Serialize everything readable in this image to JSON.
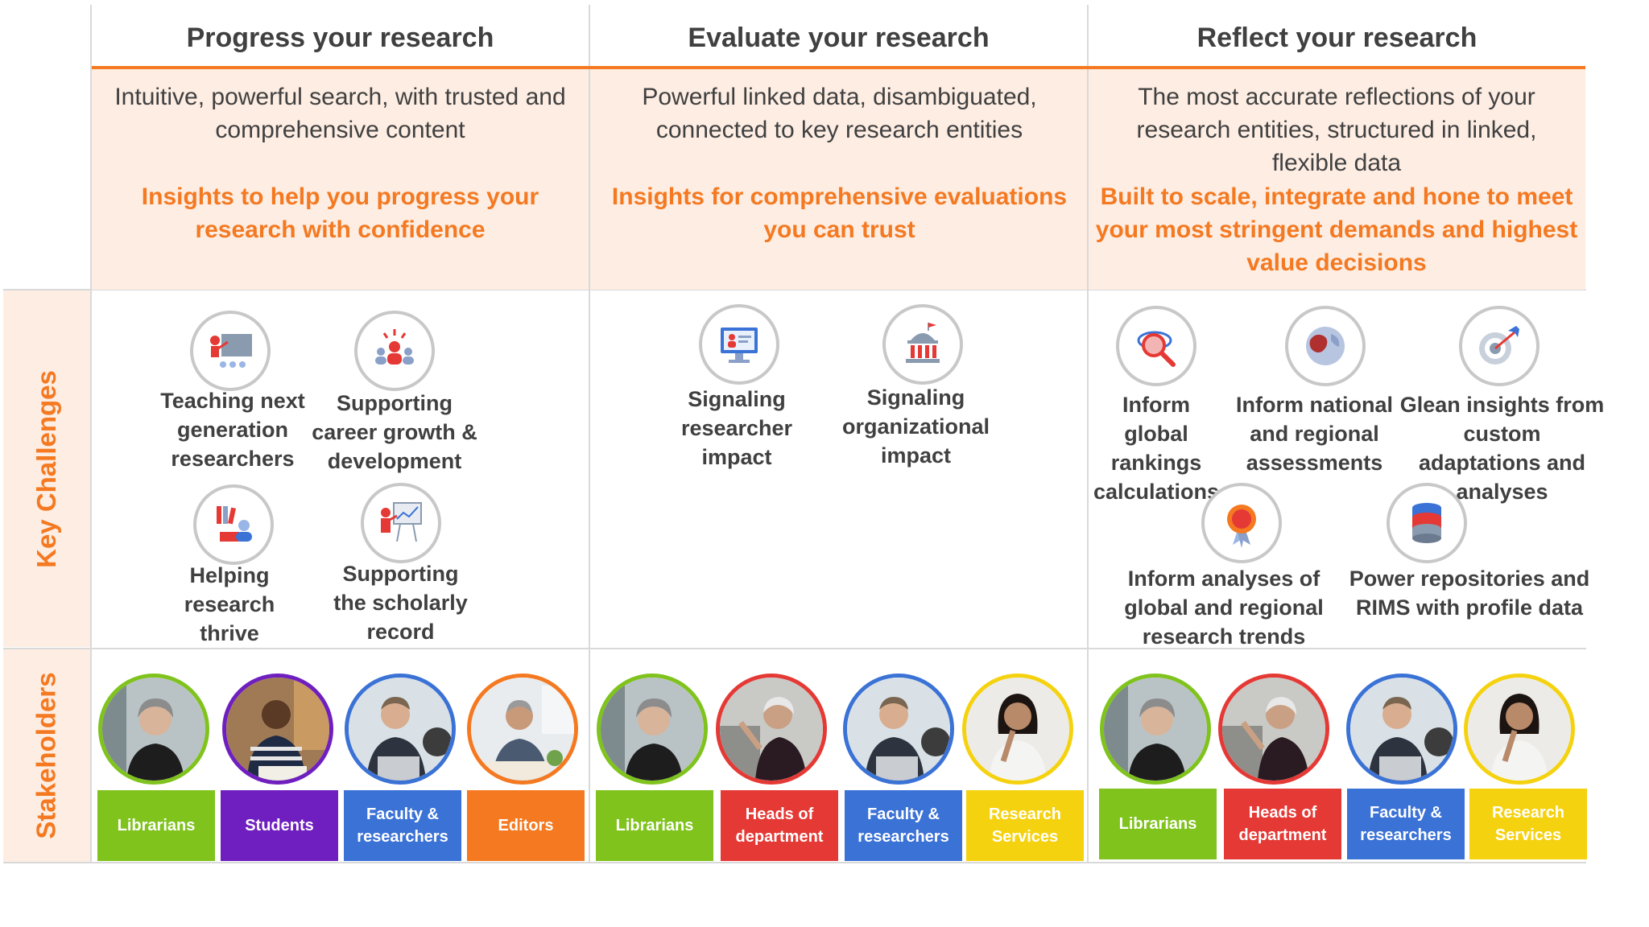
{
  "columns": [
    {
      "title": "Progress your research",
      "desc": "Intuitive, powerful search, with trusted and comprehensive content",
      "insight": "Insights to help you progress your research with confidence"
    },
    {
      "title": "Evaluate your research",
      "desc": "Powerful linked data, disambiguated, connected to key research entities",
      "insight": "Insights for comprehensive evaluations you can trust"
    },
    {
      "title": "Reflect your research",
      "desc": "The most accurate reflections of your research entities, structured in linked, flexible data",
      "insight": "Built to scale, integrate and hone to meet your most stringent demands and highest value decisions"
    }
  ],
  "side_labels": {
    "challenges": "Key Challenges",
    "stakeholders": "Stakeholders"
  },
  "challenges": {
    "progress": [
      {
        "icon": "teaching-icon",
        "label": "Teaching next generation researchers"
      },
      {
        "icon": "career-growth-icon",
        "label": "Supporting career growth & development"
      },
      {
        "icon": "research-thrive-icon",
        "label": "Helping research thrive"
      },
      {
        "icon": "scholarly-record-icon",
        "label": "Supporting the scholarly record"
      }
    ],
    "evaluate": [
      {
        "icon": "researcher-impact-icon",
        "label": "Signaling researcher impact"
      },
      {
        "icon": "organization-impact-icon",
        "label": "Signaling organizational impact"
      }
    ],
    "reflect": [
      {
        "icon": "global-rankings-icon",
        "label": "Inform global rankings calculations"
      },
      {
        "icon": "national-assessment-icon",
        "label": "Inform national and regional assessments"
      },
      {
        "icon": "target-insights-icon",
        "label": "Glean insights from custom adaptations and analyses"
      },
      {
        "icon": "research-trends-icon",
        "label": "Inform analyses of global and regional research trends"
      },
      {
        "icon": "database-icon",
        "label": "Power repositories and RIMS with profile data"
      }
    ]
  },
  "stakeholders": {
    "progress": [
      {
        "label": "Librarians",
        "color": "#7fc31c"
      },
      {
        "label": "Students",
        "color": "#6f1fbf"
      },
      {
        "label": "Faculty & researchers",
        "color": "#3b72d6"
      },
      {
        "label": "Editors",
        "color": "#f47921"
      }
    ],
    "evaluate": [
      {
        "label": "Librarians",
        "color": "#7fc31c"
      },
      {
        "label": "Heads of department",
        "color": "#e53935"
      },
      {
        "label": "Faculty & researchers",
        "color": "#3b72d6"
      },
      {
        "label": "Research Services",
        "color": "#f5d20f"
      }
    ],
    "reflect": [
      {
        "label": "Librarians",
        "color": "#7fc31c"
      },
      {
        "label": "Heads of department",
        "color": "#e53935"
      },
      {
        "label": "Faculty & researchers",
        "color": "#3b72d6"
      },
      {
        "label": "Research Services",
        "color": "#f5d20f"
      }
    ]
  },
  "colors": {
    "accent": "#f47921",
    "peach": "#fdede3",
    "text": "#404040",
    "icon_red": "#e53935"
  }
}
